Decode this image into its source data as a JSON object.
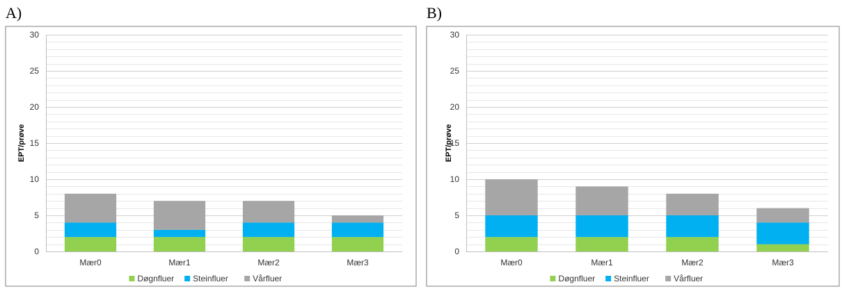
{
  "panels": [
    {
      "letter": "A)"
    },
    {
      "letter": "B)"
    }
  ],
  "colors": {
    "Døgnfluer": "#92d050",
    "Steinfluer": "#00b0f0",
    "Vårfluer": "#a6a6a6",
    "gridline": "#d9d9d9",
    "axis": "#bfbfbf"
  },
  "chart_data": [
    {
      "type": "bar",
      "stacked": true,
      "panel": "A)",
      "categories": [
        "Mær0",
        "Mær1",
        "Mær2",
        "Mær3"
      ],
      "series": [
        {
          "name": "Døgnfluer",
          "values": [
            2,
            2,
            2,
            2
          ]
        },
        {
          "name": "Steinfluer",
          "values": [
            2,
            1,
            2,
            2
          ]
        },
        {
          "name": "Vårfluer",
          "values": [
            4,
            4,
            3,
            1
          ]
        }
      ],
      "ylabel": "EPT/prøve",
      "xlabel": "",
      "ylim": [
        0,
        30
      ],
      "yticks": [
        "0",
        "5",
        "10",
        "15",
        "20",
        "25",
        "30"
      ],
      "grid": true,
      "legend": "bottom"
    },
    {
      "type": "bar",
      "stacked": true,
      "panel": "B)",
      "categories": [
        "Mær0",
        "Mær1",
        "Mær2",
        "Mær3"
      ],
      "series": [
        {
          "name": "Døgnfluer",
          "values": [
            2,
            2,
            2,
            1
          ]
        },
        {
          "name": "Steinfluer",
          "values": [
            3,
            3,
            3,
            3
          ]
        },
        {
          "name": "Vårfluer",
          "values": [
            5,
            4,
            3,
            2
          ]
        }
      ],
      "ylabel": "EPT/prøve",
      "xlabel": "",
      "ylim": [
        0,
        30
      ],
      "yticks": [
        "0",
        "5",
        "10",
        "15",
        "20",
        "25",
        "30"
      ],
      "grid": true,
      "legend": "bottom"
    }
  ]
}
